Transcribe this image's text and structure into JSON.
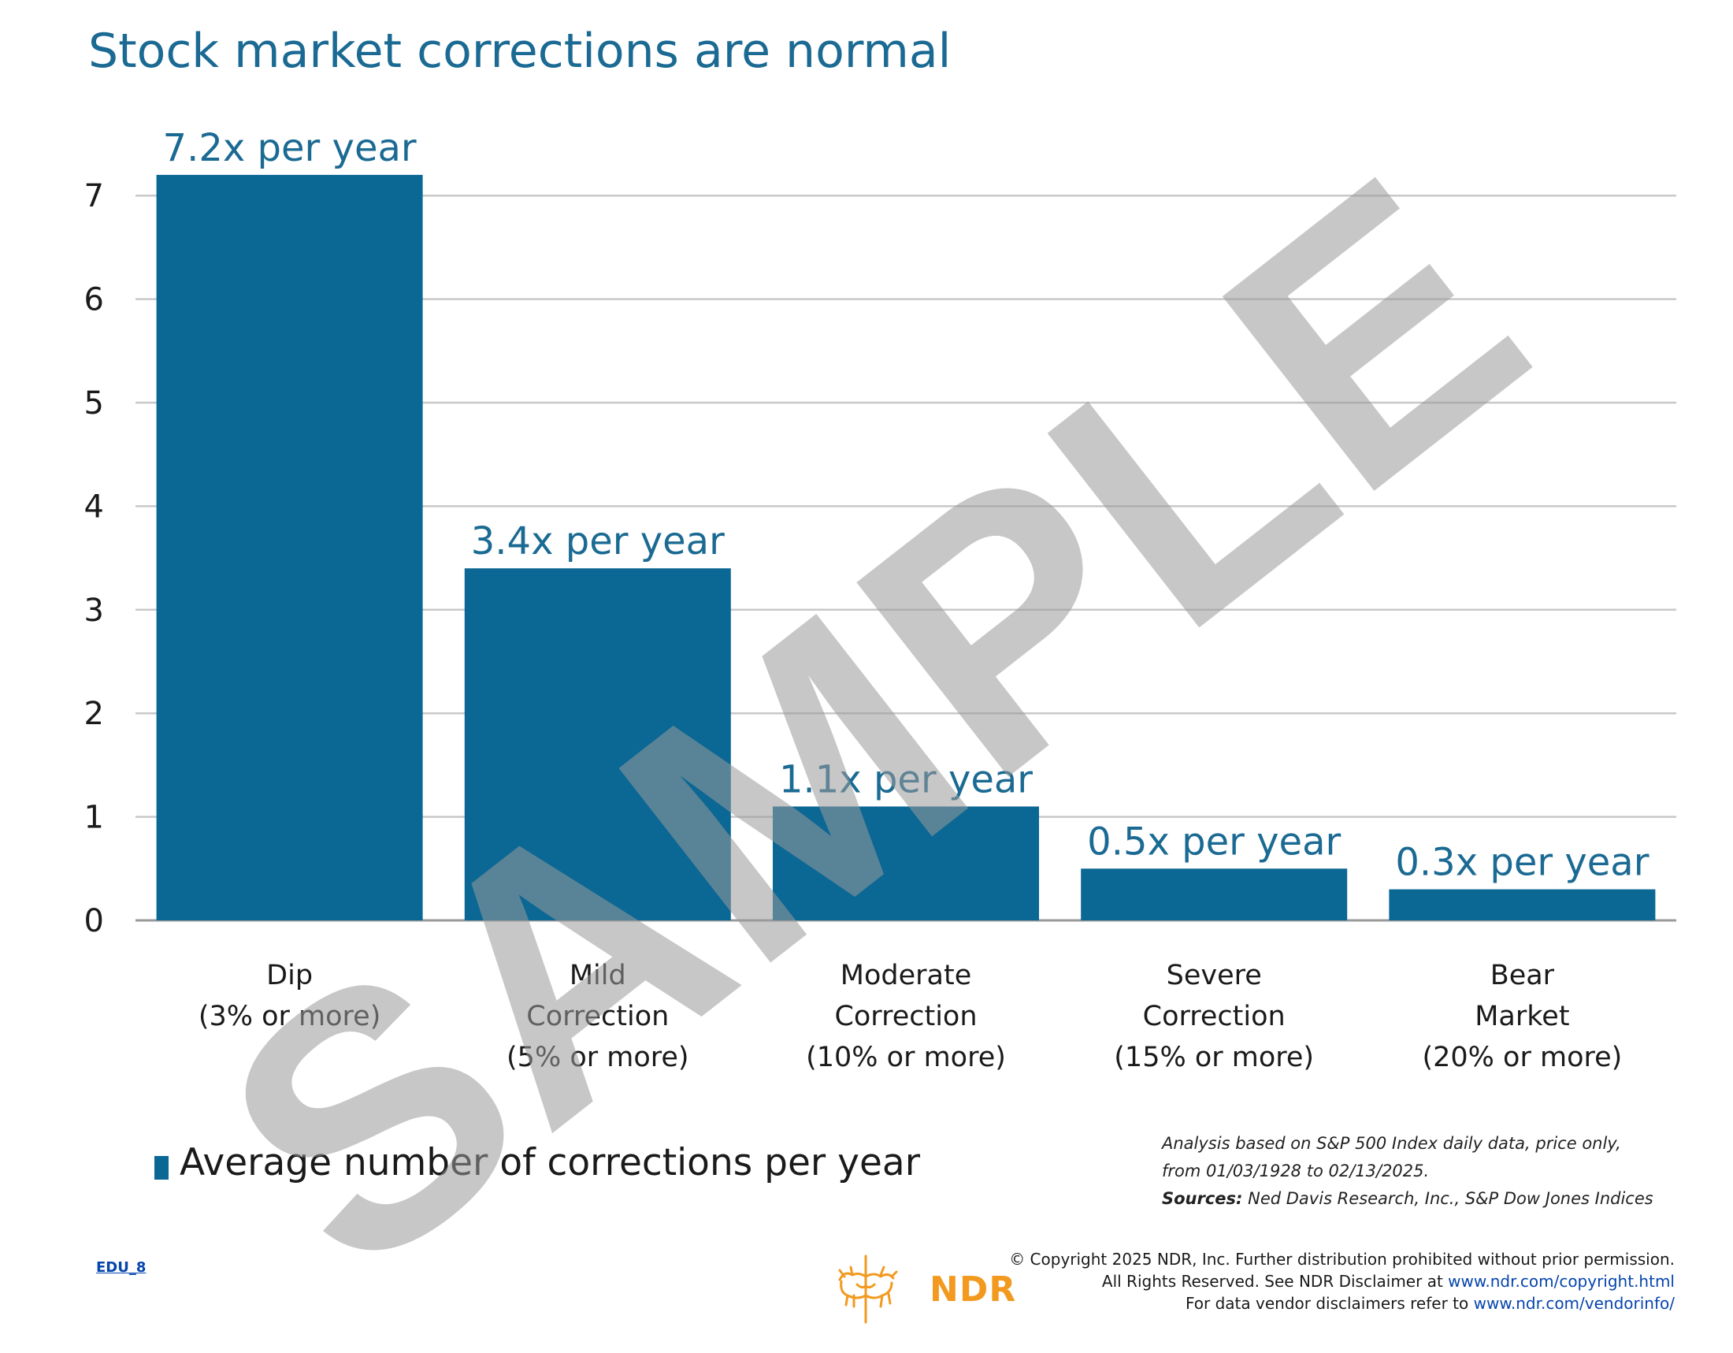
{
  "title": "Stock market corrections are normal",
  "chart_data": {
    "type": "bar",
    "categories": [
      [
        "Dip",
        "(3% or more)"
      ],
      [
        "Mild",
        "Correction",
        "(5% or more)"
      ],
      [
        "Moderate",
        "Correction",
        "(10% or more)"
      ],
      [
        "Severe",
        "Correction",
        "(15% or more)"
      ],
      [
        "Bear",
        "Market",
        "(20% or more)"
      ]
    ],
    "values": [
      7.2,
      3.4,
      1.1,
      0.5,
      0.3
    ],
    "data_labels": [
      "7.2x per year",
      "3.4x per year",
      "1.1x per year",
      "0.5x per year",
      "0.3x per year"
    ],
    "ylim": [
      0,
      7
    ],
    "yticks": [
      "0",
      "1",
      "2",
      "3",
      "4",
      "5",
      "6",
      "7"
    ],
    "grid": true,
    "series_name": "Average number of corrections per year",
    "bar_color": "#0B6794",
    "label_color": "#1B6A93",
    "legend_position": "bottom-left"
  },
  "note": {
    "line1": "Analysis based on S&P 500 Index daily data, price only,",
    "line2": "from 01/03/1928 to 02/13/2025.",
    "sources_label": "Sources:",
    "sources_text": " Ned Davis Research, Inc., S&P Dow Jones Indices"
  },
  "edu_code": "EDU_8",
  "brand": "NDR",
  "copyright": {
    "line1": "© Copyright 2025 NDR, Inc. Further distribution prohibited without prior permission.",
    "line2_text": "All Rights Reserved. See NDR Disclaimer at ",
    "line2_link": "www.ndr.com/copyright.html",
    "line3_text": "For data vendor disclaimers refer to ",
    "line3_link": "www.ndr.com/vendorinfo/"
  },
  "watermark": "SAMPLE"
}
